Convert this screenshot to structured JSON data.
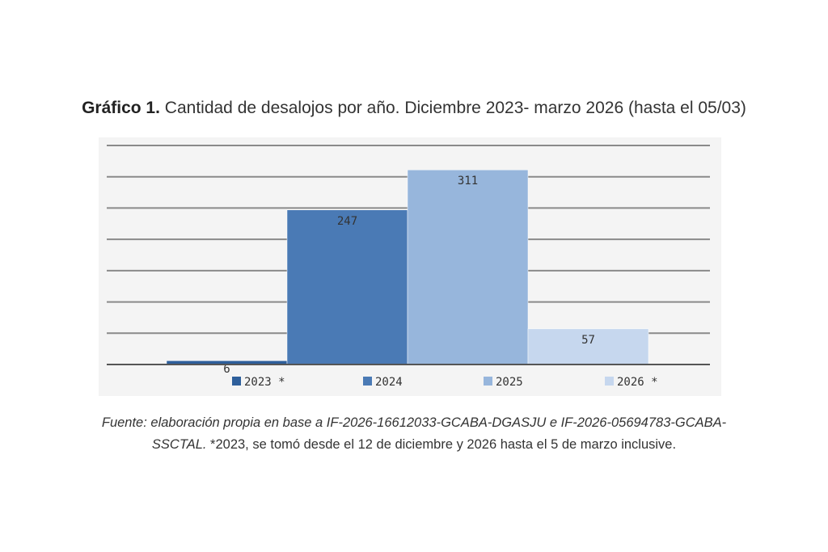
{
  "title": {
    "label": "Gráfico 1.",
    "text": "Cantidad de desalojos por año. Diciembre 2023- marzo 2026 (hasta el 05/03)"
  },
  "source": {
    "line1": "Fuente: elaboración propia en base a IF-2026-16612033-GCABA-DGASJU e IF-2026-05694783-GCABA-",
    "line2_italic": "SSCTAL.",
    "line2_rest": " *2023, se tomó desde el 12 de diciembre y 2026 hasta el 5 de marzo inclusive."
  },
  "chart_data": {
    "type": "bar",
    "categories": [
      "2023 *",
      "2024",
      "2025",
      "2026 *"
    ],
    "values": [
      6,
      247,
      311,
      57
    ],
    "data_labels": [
      "6",
      "247",
      "311",
      "57"
    ],
    "colors": [
      "#2e5f9b",
      "#4a7ab5",
      "#97b6dc",
      "#c6d7ee"
    ],
    "legend": [
      "2023 *",
      "2024",
      "2025",
      "2026 *"
    ],
    "legend_position": "bottom",
    "ylim": [
      0,
      350
    ],
    "gridlines": true,
    "grid_step": 50,
    "title": "",
    "xlabel": "",
    "ylabel": ""
  }
}
